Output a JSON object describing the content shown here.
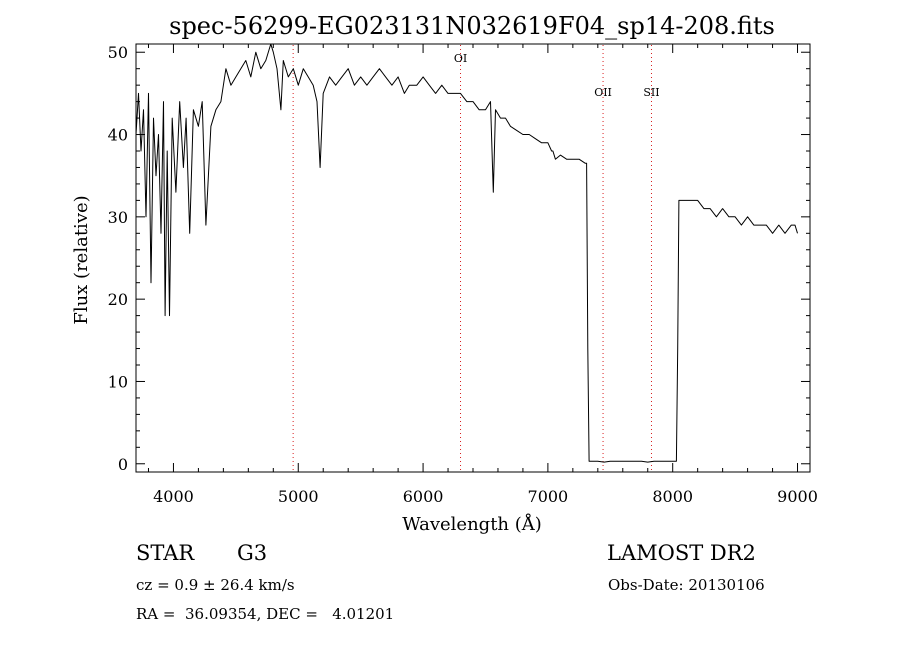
{
  "chart_data": {
    "type": "line",
    "title": "spec-56299-EG023131N032619F04_sp14-208.fits",
    "xlabel": "Wavelength (Å)",
    "ylabel": "Flux (relative)",
    "xlim": [
      3700,
      9100
    ],
    "ylim": [
      -1,
      51
    ],
    "xticks": [
      4000,
      5000,
      6000,
      7000,
      8000,
      9000
    ],
    "yticks": [
      0,
      10,
      20,
      30,
      40,
      50
    ],
    "grid": false,
    "series": [
      {
        "x": [
          3700,
          3720,
          3740,
          3760,
          3780,
          3800,
          3820,
          3840,
          3860,
          3880,
          3900,
          3920,
          3933,
          3950,
          3968,
          3990,
          4020,
          4050,
          4080,
          4101,
          4130,
          4160,
          4200,
          4230,
          4260,
          4300,
          4340,
          4380,
          4420,
          4460,
          4500,
          4540,
          4580,
          4620,
          4660,
          4700,
          4740,
          4780,
          4800,
          4830,
          4861,
          4880,
          4920,
          4960,
          5000,
          5040,
          5080,
          5120,
          5150,
          5175,
          5200,
          5250,
          5300,
          5350,
          5400,
          5450,
          5500,
          5550,
          5600,
          5650,
          5700,
          5750,
          5800,
          5850,
          5890,
          5950,
          6000,
          6050,
          6100,
          6150,
          6200,
          6250,
          6300,
          6350,
          6400,
          6450,
          6500,
          6540,
          6563,
          6580,
          6620,
          6660,
          6700,
          6750,
          6800,
          6850,
          6900,
          6950,
          7000,
          7030,
          7040,
          7060,
          7100,
          7150,
          7200,
          7250,
          7300,
          7310,
          7320,
          7330,
          7400,
          7450,
          7500,
          7550,
          7600,
          7650,
          7700,
          7750,
          7800,
          7850,
          7900,
          7950,
          8000,
          8030,
          8040,
          8050,
          8100,
          8150,
          8200,
          8250,
          8300,
          8350,
          8400,
          8450,
          8500,
          8550,
          8600,
          8650,
          8700,
          8750,
          8800,
          8850,
          8900,
          8950,
          8980,
          9000
        ],
        "values": [
          40,
          45,
          38,
          43,
          30,
          45,
          22,
          42,
          35,
          40,
          28,
          44,
          18,
          38,
          18,
          42,
          33,
          44,
          36,
          42,
          28,
          43,
          41,
          44,
          29,
          41,
          43,
          44,
          48,
          46,
          47,
          48,
          49,
          47,
          50,
          48,
          49,
          51,
          50,
          48,
          43,
          49,
          47,
          48,
          46,
          48,
          47,
          46,
          44,
          36,
          45,
          47,
          46,
          47,
          48,
          46,
          47,
          46,
          47,
          48,
          47,
          46,
          47,
          45,
          46,
          46,
          47,
          46,
          45,
          46,
          45,
          45,
          45,
          44,
          44,
          43,
          43,
          44,
          33,
          43,
          42,
          42,
          41,
          40.5,
          40,
          40,
          39.5,
          39,
          39,
          38,
          38,
          37,
          37.5,
          37,
          37,
          37,
          36.5,
          36.5,
          14,
          0.3,
          0.3,
          0.2,
          0.3,
          0.3,
          0.3,
          0.3,
          0.3,
          0.3,
          0.2,
          0.3,
          0.3,
          0.3,
          0.3,
          0.3,
          14,
          32,
          32,
          32,
          32,
          31,
          31,
          30,
          31,
          30,
          30,
          29,
          30,
          29,
          29,
          29,
          28,
          29,
          28,
          29,
          29,
          28
        ]
      }
    ],
    "markers": [
      {
        "label": "",
        "wavelength": 4959
      },
      {
        "label": "OI",
        "wavelength": 6300
      },
      {
        "label": "OII",
        "wavelength": 7442
      },
      {
        "label": "SII",
        "wavelength": 7830
      }
    ]
  },
  "info": {
    "class_label": "STAR",
    "subclass_label": "G3",
    "survey": "LAMOST DR2",
    "cz_text": "cz = 0.9 ± 26.4 km/s",
    "obs_date_text": "Obs-Date: 20130106",
    "coords_text": "RA =  36.09354, DEC =   4.01201"
  },
  "colors": {
    "spectrum": "#000000",
    "marker_line": "#d81e1e",
    "axis": "#000000"
  }
}
